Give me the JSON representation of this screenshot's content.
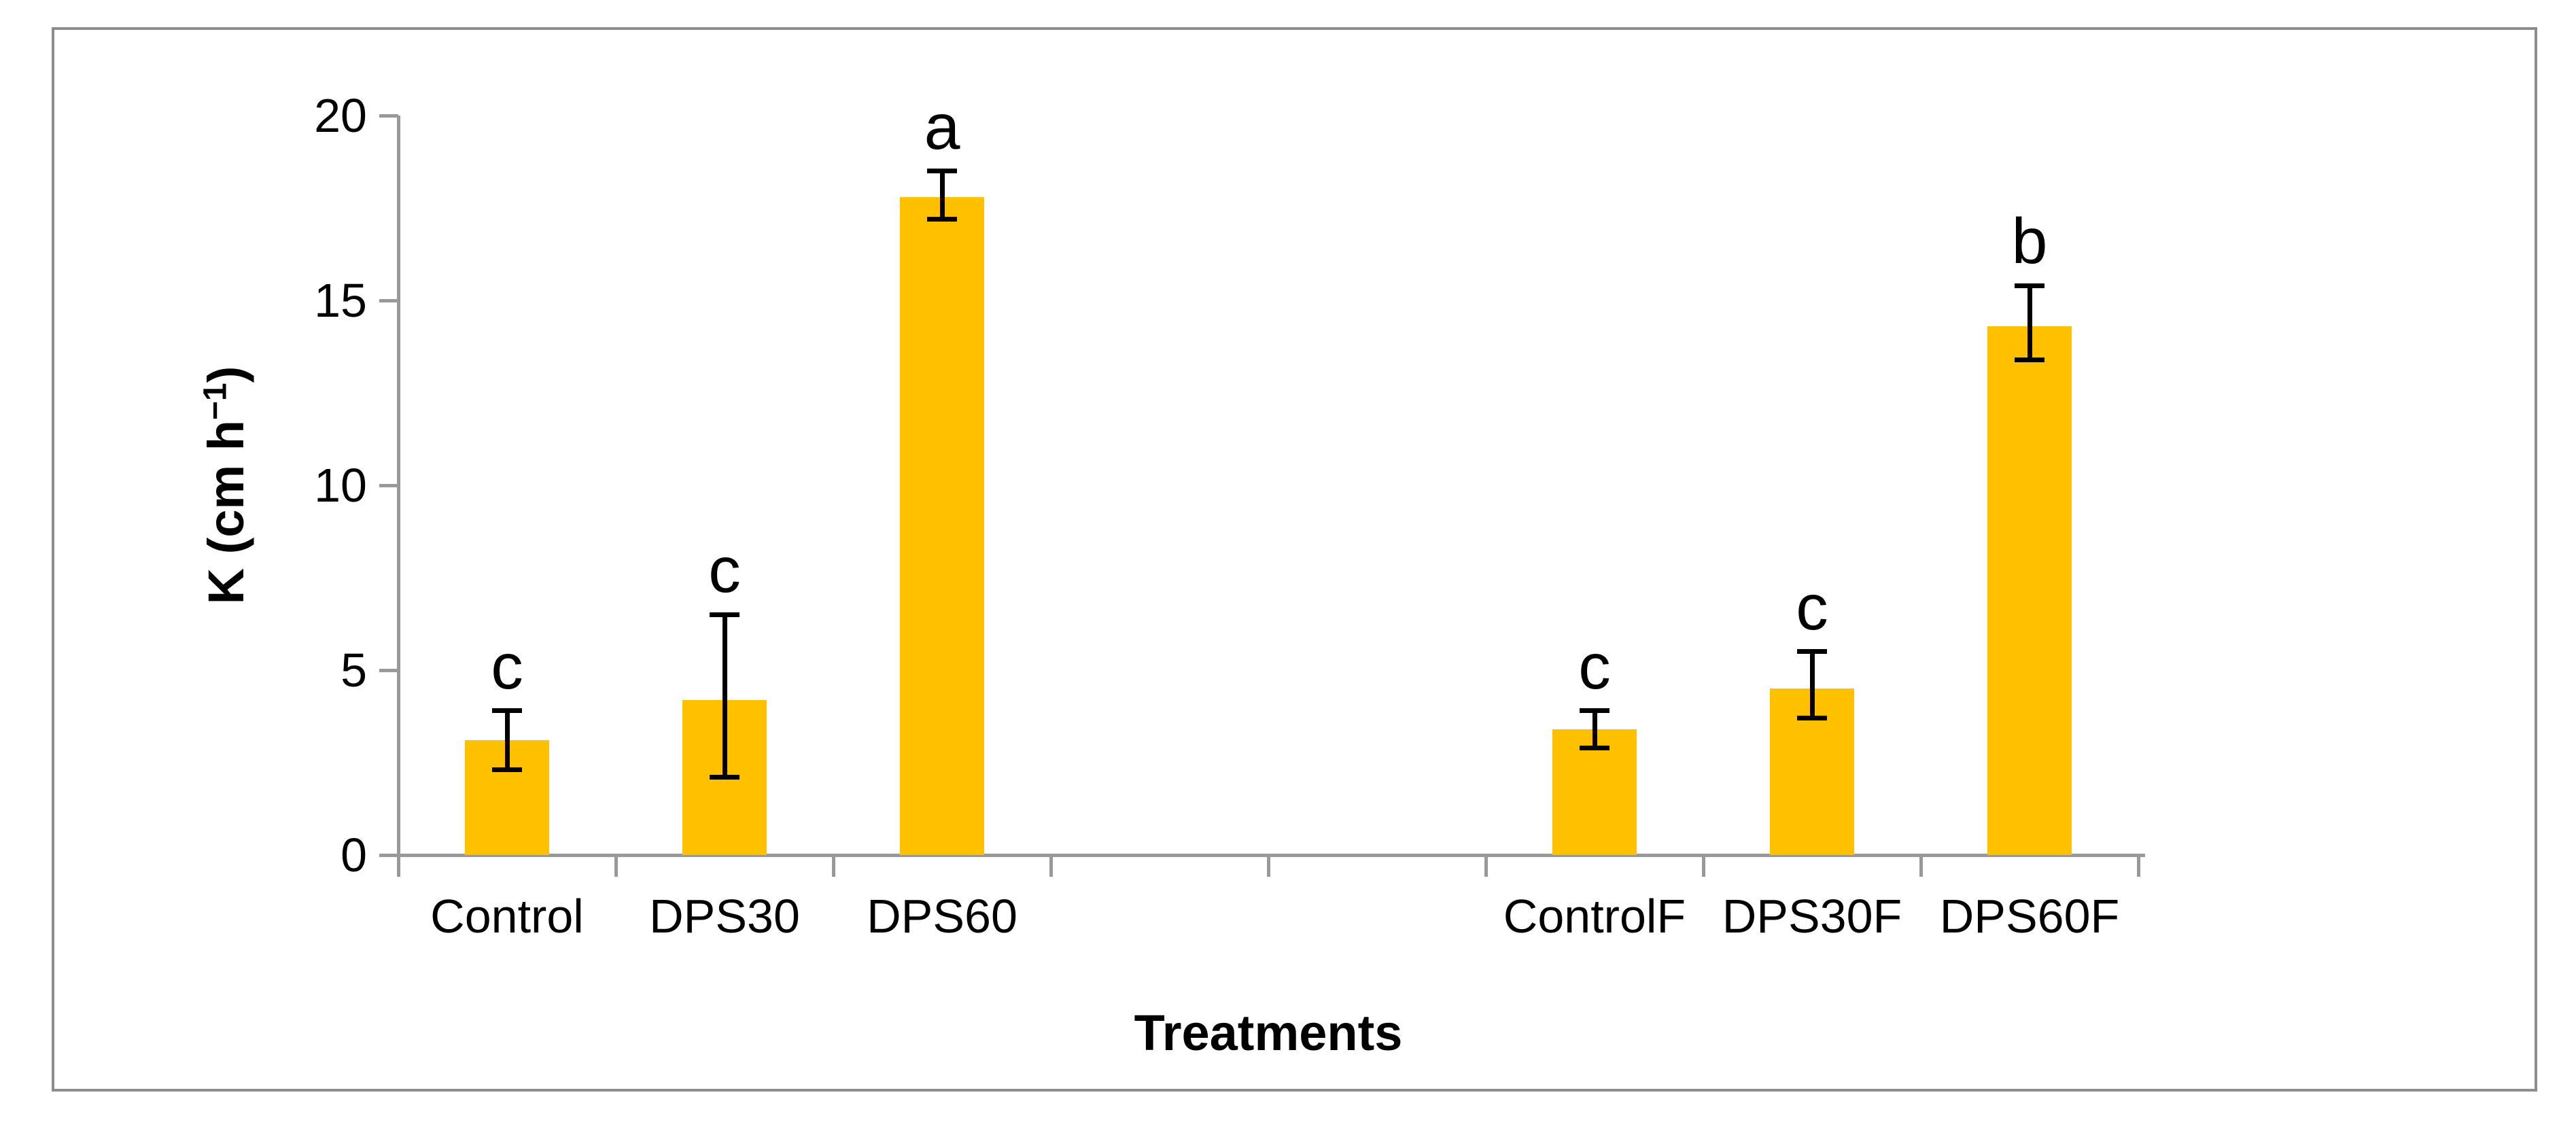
{
  "chart_data": {
    "type": "bar",
    "title": "",
    "xlabel": "Treatments",
    "ylabel": "K (cm h⁻¹)",
    "ylabel_parts": {
      "pre": "K (cm h",
      "sup": "−1",
      "post": ")"
    },
    "categories": [
      "Control",
      "DPS30",
      "DPS60",
      "ControlF",
      "DPS30F",
      "DPS60F"
    ],
    "values": [
      3.1,
      4.2,
      17.8,
      3.4,
      4.5,
      14.3
    ],
    "error_upper": [
      3.9,
      6.5,
      18.5,
      3.9,
      5.5,
      15.4
    ],
    "error_lower": [
      2.3,
      2.1,
      17.2,
      2.9,
      3.7,
      13.4
    ],
    "sig_letters": [
      "c",
      "c",
      "a",
      "c",
      "c",
      "b"
    ],
    "y_ticks": [
      0,
      5,
      10,
      15,
      20
    ],
    "y_tick_labels": [
      "0",
      "5",
      "10",
      "15",
      "20"
    ],
    "ylim": [
      0,
      20
    ],
    "grid": false,
    "legend": "none",
    "group_slots": [
      0,
      1,
      2,
      5,
      6,
      7
    ],
    "total_slots": 8,
    "bar_color": "#FFC000",
    "error_bar_color": "#000000",
    "axis_color": "#999999",
    "frame_color": "#8C8C8C",
    "text_color": "#000000"
  }
}
